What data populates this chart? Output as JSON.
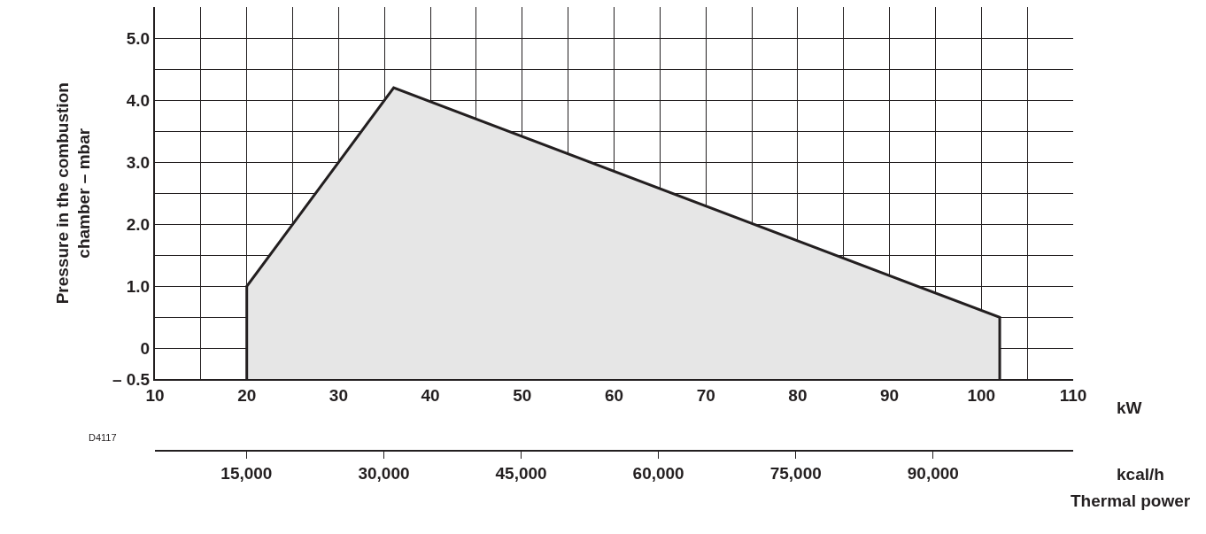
{
  "chart_data": {
    "type": "area",
    "xlabel": "kW",
    "x2label": "kcal/h",
    "ylabel": "Pressure in the combustion\nchamber – mbar",
    "annotations": [
      "Thermal power",
      "D4117"
    ],
    "x": [
      20,
      20,
      36,
      102,
      102
    ],
    "series": [
      {
        "color": "#231f20",
        "values": [
          -0.5,
          1.0,
          4.2,
          0.5,
          -0.5
        ]
      }
    ],
    "xlim": [
      10,
      110
    ],
    "xticks": [
      10,
      {
        "value": 15,
        "label": null
      },
      20,
      {
        "value": 25,
        "label": null
      },
      30,
      {
        "value": 35,
        "label": null
      },
      40,
      {
        "value": 45,
        "label": null
      },
      50,
      {
        "value": 55,
        "label": null
      },
      60,
      {
        "value": 65,
        "label": null
      },
      70,
      {
        "value": 75,
        "label": null
      },
      80,
      {
        "value": 85,
        "label": null
      },
      90,
      {
        "value": 95,
        "label": null
      },
      100,
      {
        "value": 105,
        "label": null
      },
      110
    ],
    "x2lim": [
      5000,
      105300
    ],
    "x2ticks": [
      {
        "value": 15000,
        "label": "15,000"
      },
      {
        "value": 30000,
        "label": "30,000"
      },
      {
        "value": 45000,
        "label": "45,000"
      },
      {
        "value": 60000,
        "label": "60,000"
      },
      {
        "value": 75000,
        "label": "75,000"
      },
      {
        "value": 90000,
        "label": "90,000"
      }
    ],
    "ylim": [
      -0.5,
      5.5
    ],
    "yticks": [
      {
        "value": -0.5,
        "label": "– 0.5"
      },
      0,
      {
        "value": 0.5,
        "label": null
      },
      {
        "value": 1.0,
        "label": "1.0"
      },
      {
        "value": 1.5,
        "label": null
      },
      {
        "value": 2.0,
        "label": "2.0"
      },
      {
        "value": 2.5,
        "label": null
      },
      {
        "value": 3.0,
        "label": "3.0"
      },
      {
        "value": 3.5,
        "label": null
      },
      {
        "value": 4.0,
        "label": "4.0"
      },
      {
        "value": 4.5,
        "label": null
      },
      {
        "value": 5.0,
        "label": "5.0"
      }
    ],
    "grid": true,
    "legend": false,
    "marker": "none",
    "line_style": "solid"
  }
}
